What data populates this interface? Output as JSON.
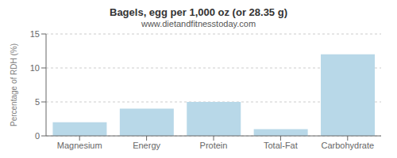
{
  "chart_data": {
    "type": "bar",
    "title": "Bagels, egg per 1,000 oz (or 28.35 g)",
    "subtitle": "www.dietandfitnesstoday.com",
    "categories": [
      "Magnesium",
      "Energy",
      "Protein",
      "Total-Fat",
      "Carbohydrate"
    ],
    "values": [
      2.0,
      4.0,
      5.0,
      1.0,
      12.0
    ],
    "color": "#b8d8e8",
    "ylabel": "Percentage of RDH (%)",
    "ylim": [
      0,
      15
    ],
    "yticks": [
      0,
      5,
      10,
      15
    ],
    "grid": true
  }
}
